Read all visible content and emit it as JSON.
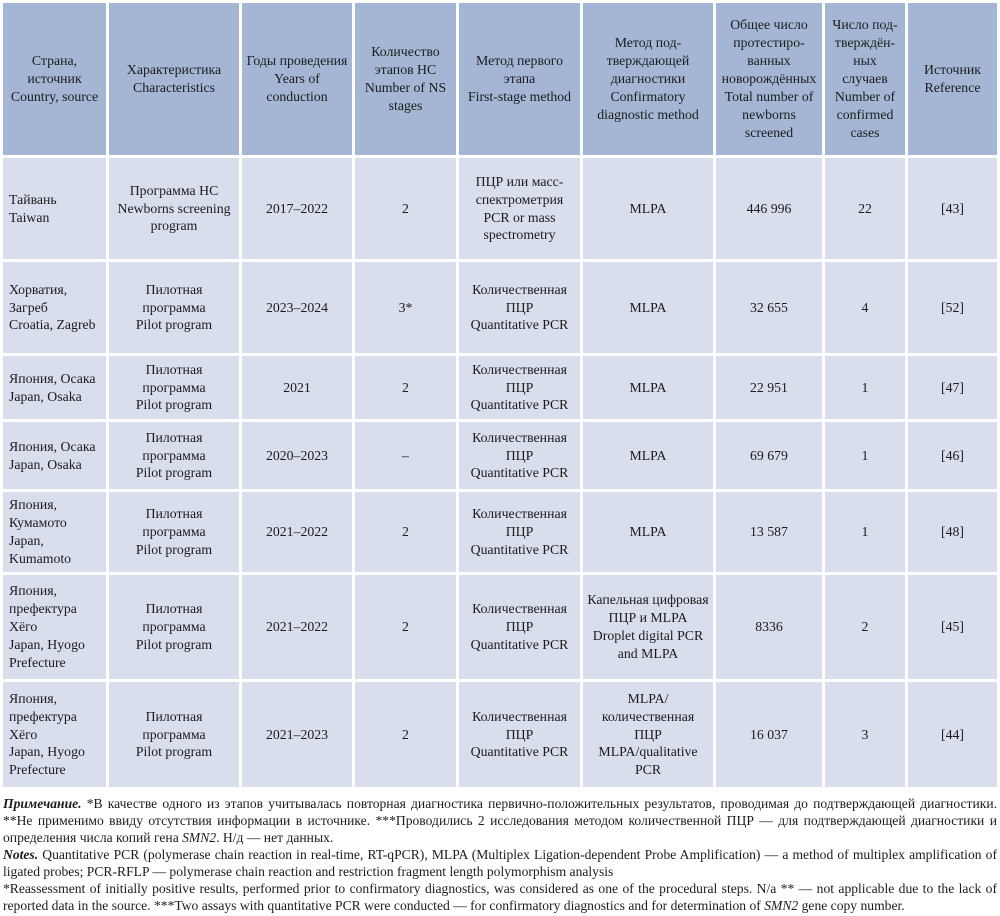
{
  "colors": {
    "header_bg": "#a4b6d4",
    "body_bg": "#d9deed",
    "text": "#1c1c1c",
    "table_border": "#ffffff"
  },
  "table": {
    "header": [
      {
        "ru": "Страна, источник",
        "en": "Country, source"
      },
      {
        "ru": "Характеристика",
        "en": "Characteristics"
      },
      {
        "ru": "Годы проведения",
        "en": "Years of conduction"
      },
      {
        "ru": "Количество этапов НС",
        "en": "Number of NS stages"
      },
      {
        "ru": "Метод первого этапа",
        "en": "First-stage method"
      },
      {
        "ru": "Метод под­тверждающей диагностики",
        "en": "Confirmatory diagnostic method"
      },
      {
        "ru": "Общее число протестиро­ванных новорождён­ных",
        "en": "Total number of newborns screened"
      },
      {
        "ru": "Число под­тверждён­ных случаев",
        "en": "Number of confirmed cases"
      },
      {
        "ru": "Источник",
        "en": "Reference"
      }
    ],
    "rows": [
      {
        "country": {
          "ru": "Тайвань",
          "en": "Taiwan"
        },
        "characteristic": {
          "ru": "Программа НС",
          "en": "Newborns screening program"
        },
        "years": "2017–2022",
        "stages": "2",
        "first_method": {
          "ru": "ПЦР или масс-спектро­метрия",
          "en": "PCR or mass spectrometry"
        },
        "confirmatory_method": {
          "text": "MLPA"
        },
        "newborns_screened": "446 996",
        "confirmed_cases": "22",
        "reference": "[43]"
      },
      {
        "country": {
          "ru": "Хорватия, Загреб",
          "en": "Croatia, Zagreb"
        },
        "characteristic": {
          "ru": "Пилотная программа",
          "en": "Pilot program"
        },
        "years": "2023–2024",
        "stages": "3*",
        "first_method": {
          "ru": "Количественная ПЦР",
          "en": "Quantitative PCR"
        },
        "confirmatory_method": {
          "text": "MLPA"
        },
        "newborns_screened": "32 655",
        "confirmed_cases": "4",
        "reference": "[52]"
      },
      {
        "country": {
          "ru": "Япония, Осака",
          "en": "Japan, Osaka"
        },
        "characteristic": {
          "ru": "Пилотная программа",
          "en": "Pilot program"
        },
        "years": "2021",
        "stages": "2",
        "first_method": {
          "ru": "Количественная ПЦР",
          "en": "Quantitative PCR"
        },
        "confirmatory_method": {
          "text": "MLPA"
        },
        "newborns_screened": "22 951",
        "confirmed_cases": "1",
        "reference": "[47]"
      },
      {
        "country": {
          "ru": "Япония, Осака",
          "en": "Japan, Osaka"
        },
        "characteristic": {
          "ru": "Пилотная программа",
          "en": "Pilot program"
        },
        "years": "2020–2023",
        "stages": "–",
        "first_method": {
          "ru": "Количественная ПЦР",
          "en": "Quantitative PCR"
        },
        "confirmatory_method": {
          "text": "MLPA"
        },
        "newborns_screened": "69 679",
        "confirmed_cases": "1",
        "reference": "[46]"
      },
      {
        "country": {
          "ru": "Япония, Кумамото",
          "en": "Japan, Kumamoto"
        },
        "characteristic": {
          "ru": "Пилотная программа",
          "en": "Pilot program"
        },
        "years": "2021–2022",
        "stages": "2",
        "first_method": {
          "ru": "Количественная ПЦР",
          "en": "Quantitative PCR"
        },
        "confirmatory_method": {
          "text": "MLPA"
        },
        "newborns_screened": "13 587",
        "confirmed_cases": "1",
        "reference": "[48]"
      },
      {
        "country": {
          "ru": "Япония, префектура Хёго",
          "en": "Japan, Hyogo Prefecture"
        },
        "characteristic": {
          "ru": "Пилотная программа",
          "en": "Pilot program"
        },
        "years": "2021–2022",
        "stages": "2",
        "first_method": {
          "ru": "Количественная ПЦР",
          "en": "Quantitative PCR"
        },
        "confirmatory_method": {
          "ru": "Капельная цифровая ПЦР и MLPA",
          "en": "Droplet digital PCR and MLPA"
        },
        "newborns_screened": "8336",
        "confirmed_cases": "2",
        "reference": "[45]"
      },
      {
        "country": {
          "ru": "Япония, префектура Хёго",
          "en": "Japan, Hyogo Prefecture"
        },
        "characteristic": {
          "ru": "Пилотная программа",
          "en": "Pilot program"
        },
        "years": "2021–2023",
        "stages": "2",
        "first_method": {
          "ru": "Количественная ПЦР",
          "en": "Quantitative PCR"
        },
        "confirmatory_method": {
          "ru": "MLPA/количественная ПЦР",
          "en": "MLPA/qualitative PCR"
        },
        "newborns_screened": "16 037",
        "confirmed_cases": "3",
        "reference": "[44]"
      }
    ]
  },
  "notes": [
    [
      {
        "t": "Примечание.",
        "s": "bi"
      },
      {
        "t": " *В качестве одного из этапов учитывалась повторная диагностика первично-положительных результатов, проводимая до подтверждающей диагностики. **Не применимо ввиду отсутствия информации в источнике. ***Проводились 2 исследования методом количественной ПЦР — для подтверждающей диагностики и определения числа копий гена ",
        "s": ""
      },
      {
        "t": "SMN2",
        "s": "i"
      },
      {
        "t": ". Н/д — нет данных.",
        "s": ""
      }
    ],
    [
      {
        "t": "Notes.",
        "s": "bi"
      },
      {
        "t": " Quantitative PCR (polymerase chain reaction in real-time, RT-qPCR), MLPA (Multiplex Ligation-dependent Probe Amplification) — a method of multiplex amplification of ligated probes; PCR-RFLP — polymerase chain reaction and restriction fragment length polymorphism analysis",
        "s": ""
      }
    ],
    [
      {
        "t": "*Reassessment of initially positive results, performed prior to confirmatory diagnostics, was considered as one of the procedural steps. N/a ** — not applicable due to the lack of reported data in the source. ***Two assays with quantitative PCR were conducted — for confirmatory diagnostics and for determination of ",
        "s": ""
      },
      {
        "t": "SMN2",
        "s": "i"
      },
      {
        "t": " gene copy number.",
        "s": ""
      }
    ]
  ]
}
